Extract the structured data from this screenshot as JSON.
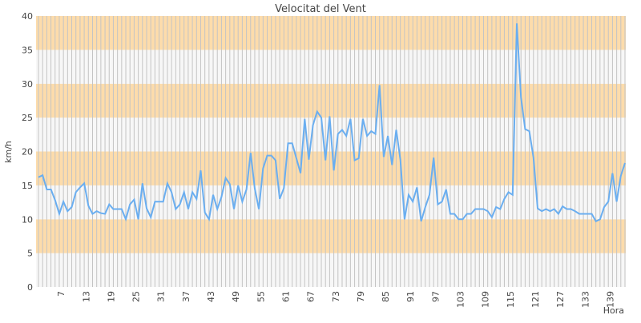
{
  "chart_data": {
    "type": "line",
    "title": "Velocitat del Vent",
    "xlabel": "Hora",
    "ylabel": "km/h",
    "ylim": [
      0,
      40
    ],
    "yticks": [
      0,
      5,
      10,
      15,
      20,
      25,
      30,
      35,
      40
    ],
    "xtick_step": 6,
    "xtick_start": 7,
    "grid": true,
    "colors": {
      "line": "#6aaef0",
      "band": "#fddcab",
      "band_alt": "#f7f7f7",
      "grid": "#c4c4c4"
    },
    "series": [
      {
        "name": "Velocitat del Vent",
        "values": [
          16.2,
          16.5,
          14.4,
          14.4,
          12.8,
          10.8,
          12.6,
          11.2,
          11.8,
          14,
          14.7,
          15.3,
          12,
          10.8,
          11.2,
          10.9,
          10.8,
          12.2,
          11.5,
          11.5,
          11.5,
          10,
          12.2,
          12.9,
          10,
          15.3,
          11.6,
          10.3,
          12.6,
          12.6,
          12.6,
          15.3,
          14,
          11.5,
          12.2,
          14,
          11.5,
          14,
          13,
          17.2,
          11,
          10,
          13.6,
          11.5,
          13.3,
          16.1,
          15.2,
          11.5,
          15,
          12.6,
          14.4,
          19.8,
          14.5,
          11.5,
          17.5,
          19.4,
          19.4,
          18.7,
          13,
          14.6,
          21.2,
          21.2,
          19,
          16.8,
          24.8,
          18.8,
          23.9,
          25.9,
          25,
          18.7,
          25.2,
          17.2,
          22.6,
          23.2,
          22.3,
          24.8,
          18.7,
          19,
          24.8,
          22.3,
          23,
          22.6,
          29.8,
          19.2,
          22.3,
          18,
          23.2,
          18.8,
          10,
          13.6,
          12.6,
          14.7,
          9.7,
          11.8,
          13.6,
          19.1,
          12.2,
          12.6,
          14.4,
          10.8,
          10.8,
          10,
          10,
          10.8,
          10.8,
          11.5,
          11.5,
          11.5,
          11.2,
          10.3,
          11.8,
          11.5,
          13,
          14,
          13.6,
          38.9,
          28,
          23.3,
          23,
          19.1,
          11.6,
          11.2,
          11.5,
          11.2,
          11.5,
          10.8,
          11.9,
          11.5,
          11.5,
          11.2,
          10.8,
          10.8,
          10.8,
          10.8,
          9.7,
          10,
          11.8,
          12.6,
          16.8,
          12.6,
          16.4,
          18.3
        ]
      }
    ]
  }
}
